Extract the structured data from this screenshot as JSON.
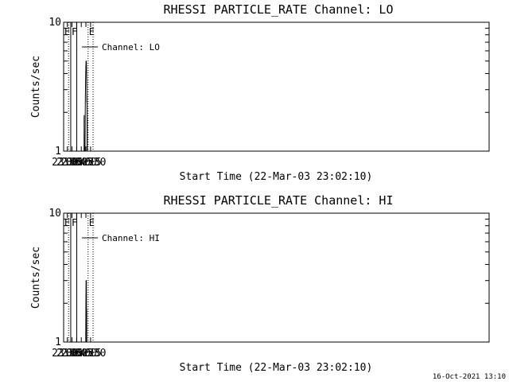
{
  "footer": {
    "timestamp": "16-Oct-2021 13:10"
  },
  "chart_data": [
    {
      "type": "line",
      "title": "RHESSI PARTICLE_RATE Channel: LO",
      "xlabel": "Start Time (22-Mar-03 23:02:10)",
      "ylabel": "Counts/sec",
      "yscale": "log",
      "ylim": [
        1,
        10
      ],
      "y_ticks": [
        "1",
        "10"
      ],
      "xlim_minutes": [
        23.05,
        45.95
      ],
      "x_ticks": [
        {
          "label": "23:15",
          "min": 23.25
        },
        {
          "label": "23:30",
          "min": 23.5
        },
        {
          "label": "23:45",
          "min": 23.75
        },
        {
          "label": "00:00",
          "min": 24.0
        },
        {
          "label": "00:15",
          "min": 24.25
        },
        {
          "label": "00:30",
          "min": 24.5
        }
      ],
      "legend": {
        "label": "Channel: LO",
        "position": "top-left"
      },
      "events": [
        {
          "label": "E",
          "time": 23.05,
          "style": "dotted"
        },
        {
          "label": "",
          "time": 23.317,
          "style": "dotted"
        },
        {
          "label": "F",
          "time": 23.433,
          "style": "solid"
        },
        {
          "label": "",
          "time": 23.758,
          "style": "solid"
        },
        {
          "label": "E",
          "time": 24.367,
          "style": "dotted"
        },
        {
          "label": "",
          "time": 24.633,
          "style": "dotted"
        }
      ],
      "series": [
        {
          "name": "Channel: LO",
          "points": [
            [
              24.15,
              1.0
            ],
            [
              24.155,
              1.9
            ],
            [
              24.16,
              1.0
            ],
            [
              24.2,
              1.0
            ],
            [
              24.208,
              1.5
            ],
            [
              24.216,
              2.1
            ],
            [
              24.224,
              2.8
            ],
            [
              24.232,
              3.5
            ],
            [
              24.24,
              4.0
            ],
            [
              24.248,
              4.6
            ],
            [
              24.256,
              5.0
            ],
            [
              24.264,
              5.0
            ],
            [
              24.27,
              4.6
            ],
            [
              24.276,
              5.0
            ],
            [
              24.284,
              4.3
            ],
            [
              24.292,
              3.6
            ],
            [
              24.298,
              2.9
            ],
            [
              24.302,
              2.4
            ],
            [
              24.306,
              2.7
            ],
            [
              24.31,
              2.2
            ],
            [
              24.312,
              1.8
            ],
            [
              24.318,
              1.0
            ],
            [
              24.322,
              1.8
            ],
            [
              24.326,
              1.0
            ]
          ]
        }
      ]
    },
    {
      "type": "line",
      "title": "RHESSI PARTICLE_RATE Channel: HI",
      "xlabel": "Start Time (22-Mar-03 23:02:10)",
      "ylabel": "Counts/sec",
      "yscale": "log",
      "ylim": [
        1,
        10
      ],
      "y_ticks": [
        "1",
        "10"
      ],
      "xlim_minutes": [
        23.05,
        45.95
      ],
      "x_ticks": [
        {
          "label": "23:15",
          "min": 23.25
        },
        {
          "label": "23:30",
          "min": 23.5
        },
        {
          "label": "23:45",
          "min": 23.75
        },
        {
          "label": "00:00",
          "min": 24.0
        },
        {
          "label": "00:15",
          "min": 24.25
        },
        {
          "label": "00:30",
          "min": 24.5
        }
      ],
      "legend": {
        "label": "Channel: HI",
        "position": "top-left"
      },
      "events": [
        {
          "label": "E",
          "time": 23.05,
          "style": "dotted"
        },
        {
          "label": "",
          "time": 23.317,
          "style": "dotted"
        },
        {
          "label": "F",
          "time": 23.433,
          "style": "solid"
        },
        {
          "label": "",
          "time": 23.758,
          "style": "solid"
        },
        {
          "label": "E",
          "time": 24.367,
          "style": "dotted"
        },
        {
          "label": "",
          "time": 24.633,
          "style": "dotted"
        }
      ],
      "series": [
        {
          "name": "Channel: HI",
          "points": [
            [
              24.24,
              1.0
            ],
            [
              24.25,
              2.0
            ],
            [
              24.256,
              3.0
            ],
            [
              24.262,
              3.0
            ],
            [
              24.266,
              2.3
            ],
            [
              24.27,
              3.0
            ],
            [
              24.276,
              3.0
            ],
            [
              24.28,
              2.2
            ],
            [
              24.286,
              1.0
            ],
            [
              24.29,
              1.8
            ],
            [
              24.294,
              1.0
            ]
          ]
        }
      ]
    }
  ]
}
